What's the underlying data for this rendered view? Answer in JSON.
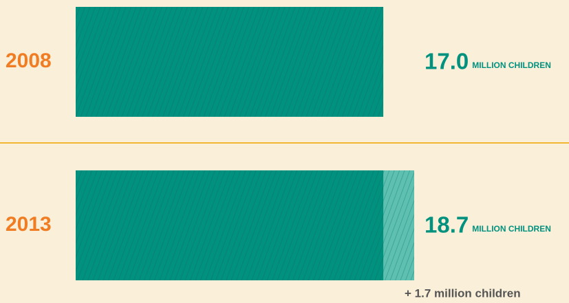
{
  "chart_data": {
    "type": "bar",
    "orientation": "horizontal",
    "categories": [
      "2008",
      "2013"
    ],
    "values": [
      17,
      18.7
    ],
    "value_labels": [
      "17.0",
      "18.7"
    ],
    "unit": "MILLION CHILDREN",
    "color": "#00917f",
    "annotation": "+ 1.7 million children"
  }
}
